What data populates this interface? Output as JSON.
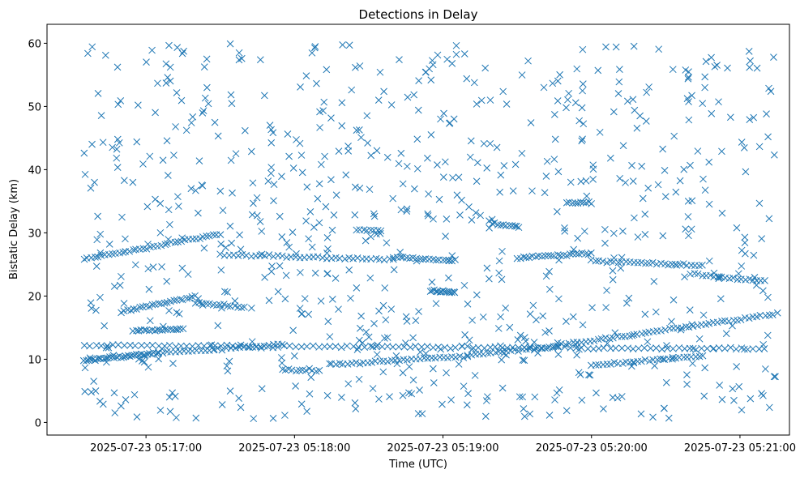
{
  "chart_data": {
    "type": "scatter",
    "title": "Detections in Delay",
    "xlabel": "Time (UTC)",
    "ylabel": "Bistatic Delay (km)",
    "marker": "x",
    "color": "#1f77b4",
    "grid": false,
    "legend": "none",
    "xlim": [
      "2025-07-23 05:16:20",
      "2025-07-23 05:21:20"
    ],
    "ylim": [
      -2.0,
      63.0
    ],
    "xticks": [
      "2025-07-23 05:17:00",
      "2025-07-23 05:18:00",
      "2025-07-23 05:19:00",
      "2025-07-23 05:20:00",
      "2025-07-23 05:21:00"
    ],
    "yticks": [
      0,
      10,
      20,
      30,
      40,
      50,
      60
    ],
    "series": [
      {
        "tracks": [
          {
            "t": [
              "2025-07-23 05:16:35",
              "2025-07-23 05:21:10"
            ],
            "y": [
              12.2,
              11.6
            ],
            "n": 120
          },
          {
            "t": [
              "2025-07-23 05:16:35",
              "2025-07-23 05:17:05"
            ],
            "y": [
              9.8,
              11.0
            ],
            "n": 35
          },
          {
            "t": [
              "2025-07-23 05:17:05",
              "2025-07-23 05:17:55"
            ],
            "y": [
              11.0,
              12.3
            ],
            "n": 30
          },
          {
            "t": [
              "2025-07-23 05:17:55",
              "2025-07-23 05:18:10"
            ],
            "y": [
              8.3,
              8.2
            ],
            "n": 12
          },
          {
            "t": [
              "2025-07-23 05:18:15",
              "2025-07-23 05:19:10"
            ],
            "y": [
              9.2,
              10.5
            ],
            "n": 35
          },
          {
            "t": [
              "2025-07-23 05:19:10",
              "2025-07-23 05:19:40"
            ],
            "y": [
              10.6,
              11.8
            ],
            "n": 20
          },
          {
            "t": [
              "2025-07-23 05:19:40",
              "2025-07-23 05:21:15"
            ],
            "y": [
              11.8,
              17.2
            ],
            "n": 60
          },
          {
            "t": [
              "2025-07-23 05:20:00",
              "2025-07-23 05:20:45"
            ],
            "y": [
              9.0,
              10.5
            ],
            "n": 30
          },
          {
            "t": [
              "2025-07-23 05:16:35",
              "2025-07-23 05:17:30"
            ],
            "y": [
              25.8,
              29.8
            ],
            "n": 40
          },
          {
            "t": [
              "2025-07-23 05:17:30",
              "2025-07-23 05:18:40"
            ],
            "y": [
              26.5,
              25.8
            ],
            "n": 40
          },
          {
            "t": [
              "2025-07-23 05:18:40",
              "2025-07-23 05:19:05"
            ],
            "y": [
              26.2,
              25.6
            ],
            "n": 20
          },
          {
            "t": [
              "2025-07-23 05:19:30",
              "2025-07-23 05:20:00"
            ],
            "y": [
              26.0,
              26.8
            ],
            "n": 25
          },
          {
            "t": [
              "2025-07-23 05:20:00",
              "2025-07-23 05:20:45"
            ],
            "y": [
              25.6,
              24.8
            ],
            "n": 30
          },
          {
            "t": [
              "2025-07-23 05:20:40",
              "2025-07-23 05:21:10"
            ],
            "y": [
              23.5,
              22.3
            ],
            "n": 20
          },
          {
            "t": [
              "2025-07-23 05:16:50",
              "2025-07-23 05:17:20"
            ],
            "y": [
              17.5,
              20.0
            ],
            "n": 25
          },
          {
            "t": [
              "2025-07-23 05:17:20",
              "2025-07-23 05:17:40"
            ],
            "y": [
              19.0,
              18.2
            ],
            "n": 15
          },
          {
            "t": [
              "2025-07-23 05:16:55",
              "2025-07-23 05:17:15"
            ],
            "y": [
              14.5,
              14.8
            ],
            "n": 20
          },
          {
            "t": [
              "2025-07-23 05:18:55",
              "2025-07-23 05:19:05"
            ],
            "y": [
              20.8,
              20.6
            ],
            "n": 15
          },
          {
            "t": [
              "2025-07-23 05:19:20",
              "2025-07-23 05:19:30"
            ],
            "y": [
              31.5,
              31.0
            ],
            "n": 10
          },
          {
            "t": [
              "2025-07-23 05:19:50",
              "2025-07-23 05:20:00"
            ],
            "y": [
              34.8,
              34.8
            ],
            "n": 10
          },
          {
            "t": [
              "2025-07-23 05:18:25",
              "2025-07-23 05:18:35"
            ],
            "y": [
              30.5,
              30.3
            ],
            "n": 8
          }
        ],
        "clutter_count": 760
      }
    ]
  }
}
